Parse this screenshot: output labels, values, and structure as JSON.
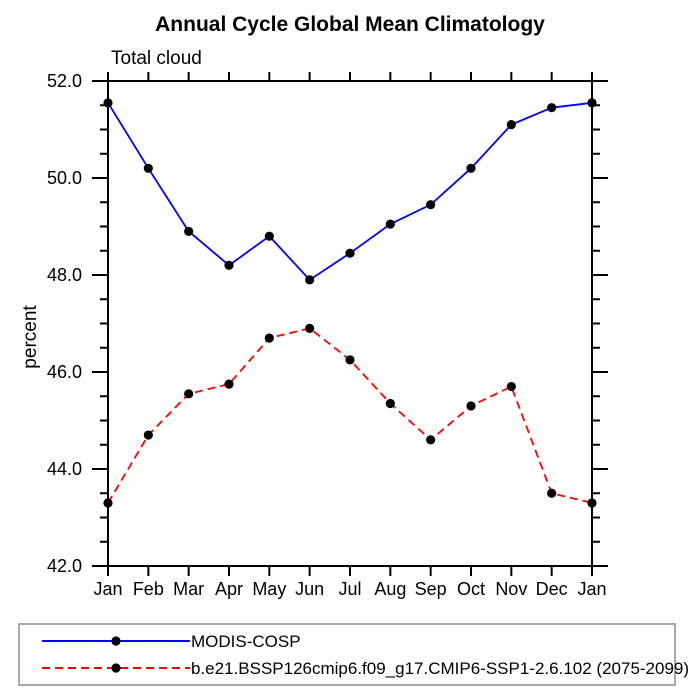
{
  "page": {
    "background": "#ffffff"
  },
  "chart_data": {
    "type": "line",
    "title": "Annual Cycle Global Mean Climatology",
    "subtitle": "Total cloud",
    "ylabel": "percent",
    "xlabel": "",
    "categories": [
      "Jan",
      "Feb",
      "Mar",
      "Apr",
      "May",
      "Jun",
      "Jul",
      "Aug",
      "Sep",
      "Oct",
      "Nov",
      "Dec",
      "Jan"
    ],
    "ylim": [
      42.0,
      52.0
    ],
    "ytick_values": [
      42,
      44,
      46,
      48,
      50,
      52
    ],
    "ytick_labels": [
      "42.0",
      "44.0",
      "46.0",
      "48.0",
      "50.0",
      "52.0"
    ],
    "yminor_step": 0.5,
    "grid": false,
    "legend_position": "bottom",
    "axis_color": "#000000",
    "marker": {
      "shape": "circle",
      "color": "#000000",
      "radius": 4.6
    },
    "series": [
      {
        "name": "MODIS-COSP",
        "color": "#0000ff",
        "line_style": "solid",
        "values": [
          51.55,
          50.2,
          48.9,
          48.2,
          48.8,
          47.9,
          48.45,
          49.05,
          49.45,
          50.2,
          51.1,
          51.45,
          51.55
        ]
      },
      {
        "name": "b.e21.BSSP126cmip6.f09_g17.CMIP6-SSP1-2.6.102 (2075-2099)",
        "color": "#ff0000",
        "line_style": "dashed",
        "values": [
          43.3,
          44.7,
          45.55,
          45.75,
          46.7,
          46.9,
          46.25,
          45.35,
          44.6,
          45.3,
          45.7,
          43.5,
          43.3
        ]
      }
    ]
  },
  "legend": {
    "border_color": "#a9a9a9"
  }
}
